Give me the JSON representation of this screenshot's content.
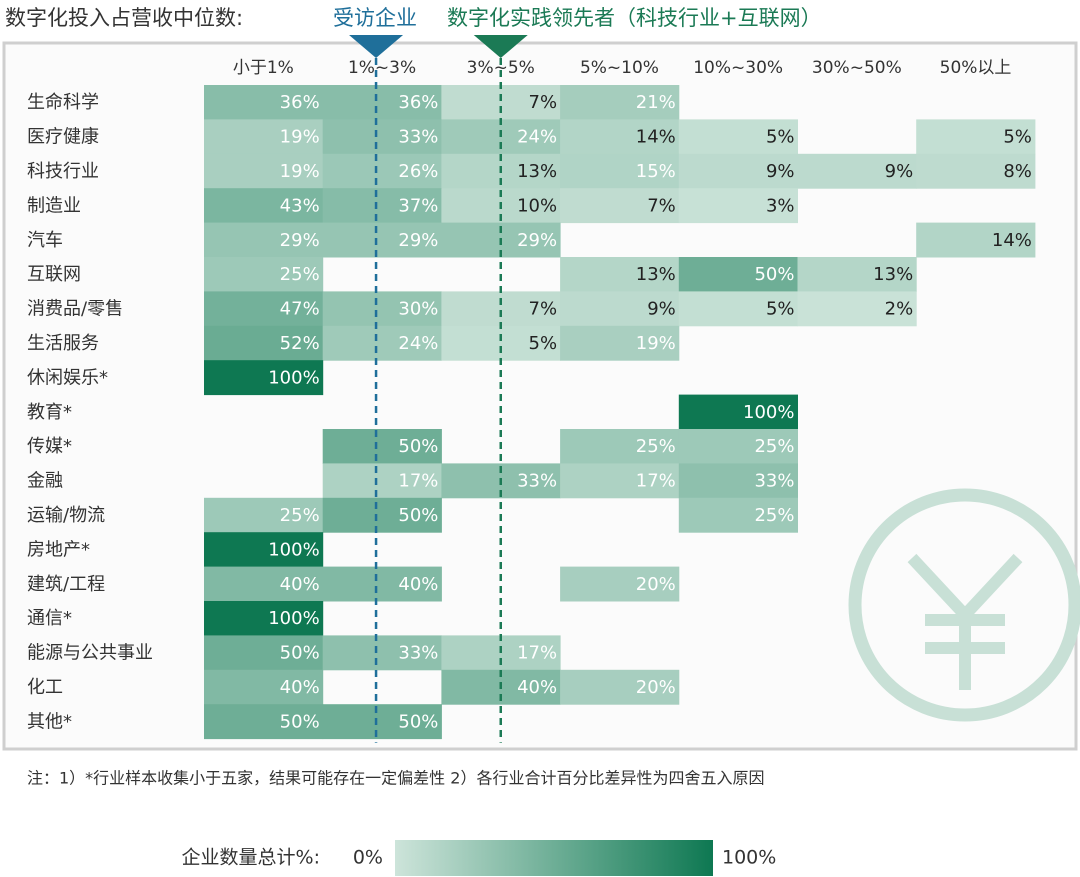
{
  "chart_data": {
    "type": "heatmap",
    "title": "数字化投入占营收中位数:",
    "columns": [
      "小于1%",
      "1%~3%",
      "3%~5%",
      "5%~10%",
      "10%~30%",
      "30%~50%",
      "50%以上"
    ],
    "rows": [
      "生命科学",
      "医疗健康",
      "科技行业",
      "制造业",
      "汽车",
      "互联网",
      "消费品/零售",
      "生活服务",
      "休闲娱乐*",
      "教育*",
      "传媒*",
      "金融",
      "运输/物流",
      "房地产*",
      "建筑/工程",
      "通信*",
      "能源与公共事业",
      "化工",
      "其他*"
    ],
    "values": [
      [
        36,
        36,
        7,
        21,
        null,
        null,
        null
      ],
      [
        19,
        33,
        24,
        14,
        5,
        null,
        5
      ],
      [
        19,
        26,
        13,
        15,
        9,
        9,
        8
      ],
      [
        43,
        37,
        10,
        7,
        3,
        null,
        null
      ],
      [
        29,
        29,
        29,
        null,
        null,
        null,
        14
      ],
      [
        25,
        null,
        null,
        13,
        50,
        13,
        null
      ],
      [
        47,
        30,
        7,
        9,
        5,
        2,
        null
      ],
      [
        52,
        24,
        5,
        19,
        null,
        null,
        null
      ],
      [
        100,
        null,
        null,
        null,
        null,
        null,
        null
      ],
      [
        null,
        null,
        null,
        null,
        100,
        null,
        null
      ],
      [
        null,
        50,
        null,
        25,
        25,
        null,
        null
      ],
      [
        null,
        17,
        33,
        17,
        33,
        null,
        null
      ],
      [
        25,
        50,
        null,
        null,
        25,
        null,
        null
      ],
      [
        100,
        null,
        null,
        null,
        null,
        null,
        null
      ],
      [
        40,
        40,
        null,
        20,
        null,
        null,
        null
      ],
      [
        100,
        null,
        null,
        null,
        null,
        null,
        null
      ],
      [
        50,
        33,
        17,
        null,
        null,
        null,
        null
      ],
      [
        40,
        null,
        40,
        20,
        null,
        null,
        null
      ],
      [
        50,
        50,
        null,
        null,
        null,
        null,
        null
      ]
    ],
    "value_labels": [
      [
        "36%",
        "36%",
        "7%",
        "21%",
        null,
        null,
        null
      ],
      [
        "19%",
        "33%",
        "24%",
        "14%",
        "5%",
        null,
        "5%"
      ],
      [
        "19%",
        "26%",
        "13%",
        "15%",
        "9%",
        "9%",
        "8%"
      ],
      [
        "43%",
        "37%",
        "10%",
        "7%",
        "3%",
        null,
        null
      ],
      [
        "29%",
        "29%",
        "29%",
        null,
        null,
        null,
        "14%"
      ],
      [
        "25%",
        null,
        null,
        "13%",
        "50%",
        "13%",
        null
      ],
      [
        "47%",
        "30%",
        "7%",
        "9%",
        "5%",
        "2%",
        null
      ],
      [
        "52%",
        "24%",
        "5%",
        "19%",
        null,
        null,
        null
      ],
      [
        "100%",
        null,
        null,
        null,
        null,
        null,
        null
      ],
      [
        null,
        null,
        null,
        null,
        "100%",
        null,
        null
      ],
      [
        null,
        "50%",
        null,
        "25%",
        "25%",
        null,
        null
      ],
      [
        null,
        "17%",
        "33%",
        "17%",
        "33%",
        null,
        null
      ],
      [
        "25%",
        "50%",
        null,
        null,
        "25%",
        null,
        null
      ],
      [
        "100%",
        null,
        null,
        null,
        null,
        null,
        null
      ],
      [
        "40%",
        "40%",
        null,
        "20%",
        null,
        null,
        null
      ],
      [
        "100%",
        null,
        null,
        null,
        null,
        null,
        null
      ],
      [
        "50%",
        "33%",
        "17%",
        null,
        null,
        null,
        null
      ],
      [
        "40%",
        null,
        "40%",
        "20%",
        null,
        null,
        null
      ],
      [
        "50%",
        "50%",
        null,
        null,
        null,
        null,
        null
      ]
    ],
    "color_scale": [
      "#cde4da",
      "#0e7852"
    ],
    "markers": [
      {
        "name": "受访企业",
        "at": "1%~3%",
        "color": "#1f6f9a"
      },
      {
        "name": "数字化实践领先者（科技行业+互联网）",
        "at": "3%~5%",
        "color": "#1b7a55"
      }
    ],
    "note": "注：1）*行业样本收集小于五家，结果可能存在一定偏差性 2）各行业合计百分比差异性为四舍五入原因",
    "colorbar": {
      "title": "企业数量总计%:",
      "range": [
        {
          "value": 0,
          "label": "0%"
        },
        {
          "value": 100,
          "label": "100%"
        }
      ]
    }
  }
}
